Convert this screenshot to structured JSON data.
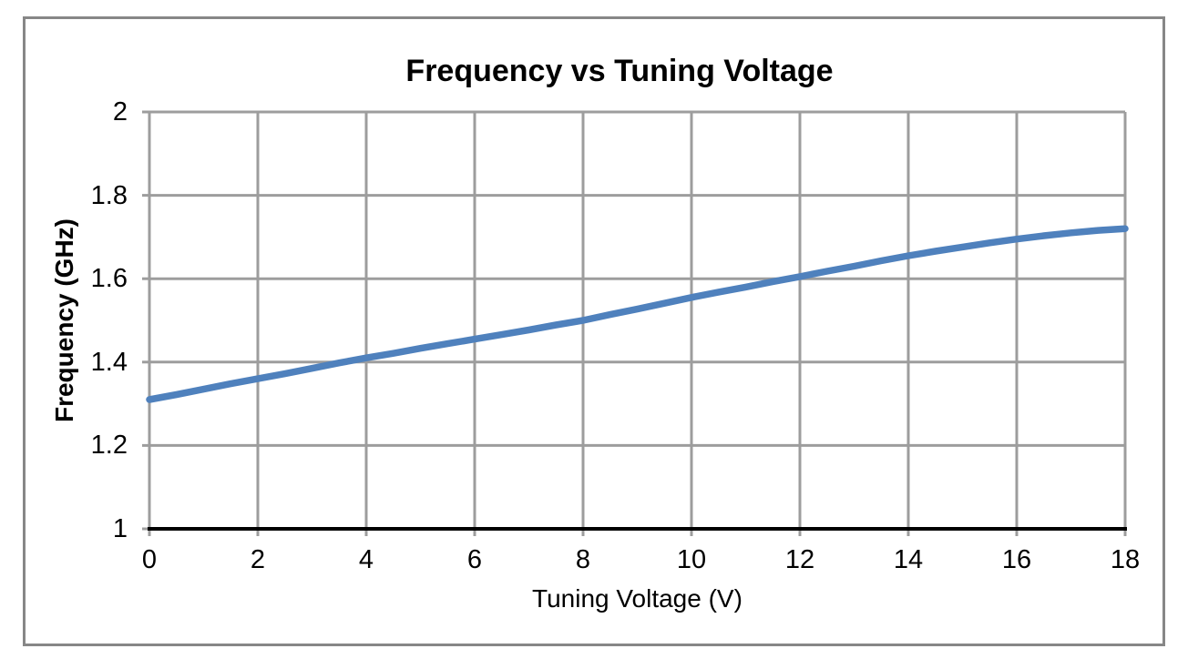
{
  "window": {
    "background_color": "#ffffff",
    "frame_border_color": "#878787"
  },
  "chart_data": {
    "type": "line",
    "title": "Frequency vs Tuning Voltage",
    "xlabel": "Tuning Voltage (V)",
    "ylabel": "Frequency (GHz)",
    "xlim": [
      0,
      18
    ],
    "ylim": [
      1,
      2
    ],
    "xticks": [
      0,
      2,
      4,
      6,
      8,
      10,
      12,
      14,
      16,
      18
    ],
    "yticks": [
      1,
      1.2,
      1.4,
      1.6,
      1.8,
      2
    ],
    "grid": true,
    "legend": false,
    "line_color": "#4f81bd",
    "grid_color": "#9d9d9d",
    "axis_color": "#000000",
    "x": [
      0,
      0.5,
      1,
      1.5,
      2,
      2.5,
      3,
      3.5,
      4,
      4.5,
      5,
      5.5,
      6,
      6.5,
      7,
      7.5,
      8,
      8.5,
      9,
      9.5,
      10,
      10.5,
      11,
      11.5,
      12,
      12.5,
      13,
      13.5,
      14,
      14.5,
      15,
      15.5,
      16,
      16.5,
      17,
      17.5,
      18
    ],
    "y": [
      1.31,
      1.322,
      1.335,
      1.348,
      1.36,
      1.372,
      1.385,
      1.398,
      1.41,
      1.421,
      1.433,
      1.444,
      1.455,
      1.466,
      1.477,
      1.489,
      1.5,
      1.514,
      1.527,
      1.541,
      1.555,
      1.568,
      1.58,
      1.593,
      1.605,
      1.618,
      1.63,
      1.643,
      1.655,
      1.666,
      1.676,
      1.686,
      1.695,
      1.703,
      1.71,
      1.716,
      1.72
    ]
  }
}
